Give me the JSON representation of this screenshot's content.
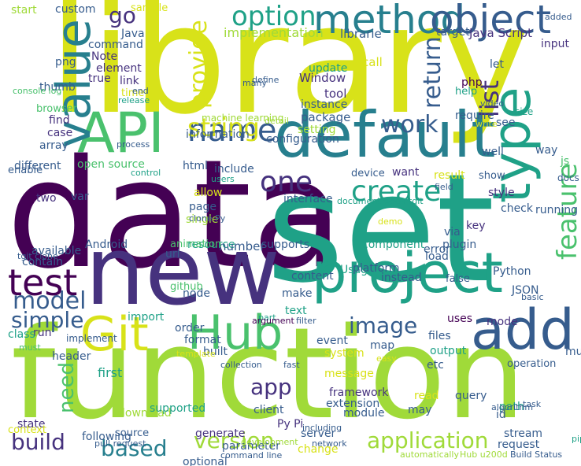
{
  "palette": {
    "yellow": "#d8e219",
    "lime": "#a0da39",
    "green": "#4ac16d",
    "teal": "#1fa187",
    "cyan": "#277f8e",
    "blue": "#365c8d",
    "indigo": "#46327e",
    "purple": "#440154"
  },
  "words": [
    {
      "text": "data",
      "color": "purple",
      "rot": 0
    },
    {
      "text": "library",
      "color": "yellow",
      "rot": 0
    },
    {
      "text": "set",
      "color": "teal",
      "rot": 0
    },
    {
      "text": "function",
      "color": "lime",
      "rot": 0
    },
    {
      "text": "new",
      "color": "indigo",
      "rot": 0
    },
    {
      "text": "default",
      "color": "cyan",
      "rot": 0
    },
    {
      "text": "project",
      "color": "teal",
      "rot": 0
    },
    {
      "text": "API",
      "color": "green",
      "rot": 0
    },
    {
      "text": "Git",
      "color": "yellow",
      "rot": 0
    },
    {
      "text": "Hub",
      "color": "green",
      "rot": 0
    },
    {
      "text": "add",
      "color": "blue",
      "rot": 0
    },
    {
      "text": "type",
      "color": "teal",
      "rot": 90
    },
    {
      "text": "method",
      "color": "cyan",
      "rot": 0
    },
    {
      "text": "object",
      "color": "blue",
      "rot": 0
    },
    {
      "text": "value",
      "color": "cyan",
      "rot": 90
    },
    {
      "text": "test",
      "color": "purple",
      "rot": 0
    },
    {
      "text": "name",
      "color": "blue",
      "rot": 0
    },
    {
      "text": "one",
      "color": "indigo",
      "rot": 0
    },
    {
      "text": "create",
      "color": "teal",
      "rot": 0
    },
    {
      "text": "feature",
      "color": "green",
      "rot": 90
    },
    {
      "text": "option",
      "color": "teal",
      "rot": 0
    },
    {
      "text": "string",
      "color": "yellow",
      "rot": 0
    },
    {
      "text": "provide",
      "color": "yellow",
      "rot": 90
    },
    {
      "text": "go",
      "color": "indigo",
      "rot": 0
    },
    {
      "text": "return",
      "color": "blue",
      "rot": 90
    },
    {
      "text": "list",
      "color": "indigo",
      "rot": 90
    },
    {
      "text": "work",
      "color": "blue",
      "rot": 0
    },
    {
      "text": "model",
      "color": "blue",
      "rot": 0
    },
    {
      "text": "simple",
      "color": "blue",
      "rot": 0
    },
    {
      "text": "image",
      "color": "blue",
      "rot": 0
    },
    {
      "text": "app",
      "color": "indigo",
      "rot": 0
    },
    {
      "text": "need",
      "color": "green",
      "rot": 90
    },
    {
      "text": "build",
      "color": "indigo",
      "rot": 0
    },
    {
      "text": "based",
      "color": "cyan",
      "rot": 0
    },
    {
      "text": "version",
      "color": "lime",
      "rot": 0
    },
    {
      "text": "application",
      "color": "lime",
      "rot": 0
    },
    {
      "text": "implementation",
      "color": "lime",
      "rot": 0
    },
    {
      "text": "librarie",
      "color": "blue",
      "rot": 0
    },
    {
      "text": "Java Script",
      "color": "indigo",
      "rot": 0
    },
    {
      "text": "input",
      "color": "indigo",
      "rot": 0
    },
    {
      "text": "target",
      "color": "blue",
      "rot": 0
    },
    {
      "text": "Note",
      "color": "indigo",
      "rot": 0
    },
    {
      "text": "element",
      "color": "indigo",
      "rot": 0
    },
    {
      "text": "true",
      "color": "indigo",
      "rot": 0
    },
    {
      "text": "link",
      "color": "indigo",
      "rot": 0
    },
    {
      "text": "Java",
      "color": "blue",
      "rot": 0
    },
    {
      "text": "command",
      "color": "blue",
      "rot": 0
    },
    {
      "text": "custom",
      "color": "blue",
      "rot": 0
    },
    {
      "text": "sample",
      "color": "yellow",
      "rot": 0
    },
    {
      "text": "start",
      "color": "lime",
      "rot": 0
    },
    {
      "text": "update",
      "color": "teal",
      "rot": 0
    },
    {
      "text": "call",
      "color": "yellow",
      "rot": 0
    },
    {
      "text": "let",
      "color": "blue",
      "rot": 0
    },
    {
      "text": "Window",
      "color": "indigo",
      "rot": 0
    },
    {
      "text": "php",
      "color": "purple",
      "rot": 0
    },
    {
      "text": "tool",
      "color": "indigo",
      "rot": 0
    },
    {
      "text": "instance",
      "color": "blue",
      "rot": 0
    },
    {
      "text": "help",
      "color": "teal",
      "rot": 0
    },
    {
      "text": "package",
      "color": "blue",
      "rot": 0
    },
    {
      "text": "require",
      "color": "blue",
      "rot": 0
    },
    {
      "text": "see",
      "color": "blue",
      "rot": 0
    },
    {
      "text": "setting",
      "color": "lime",
      "rot": 0
    },
    {
      "text": "information",
      "color": "blue",
      "rot": 0
    },
    {
      "text": "open source",
      "color": "green",
      "rot": 0
    },
    {
      "text": "html",
      "color": "blue",
      "rot": 0
    },
    {
      "text": "include",
      "color": "blue",
      "rot": 0
    },
    {
      "text": "want",
      "color": "indigo",
      "rot": 0
    },
    {
      "text": "result",
      "color": "yellow",
      "rot": 0
    },
    {
      "text": "show",
      "color": "blue",
      "rot": 0
    },
    {
      "text": "device",
      "color": "blue",
      "rot": 0
    },
    {
      "text": "interface",
      "color": "blue",
      "rot": 0
    },
    {
      "text": "style",
      "color": "indigo",
      "rot": 0
    },
    {
      "text": "allow",
      "color": "yellow",
      "rot": 0
    },
    {
      "text": "page",
      "color": "blue",
      "rot": 0
    },
    {
      "text": "single",
      "color": "lime",
      "rot": 0
    },
    {
      "text": "var",
      "color": "blue",
      "rot": 0
    },
    {
      "text": "two",
      "color": "indigo",
      "rot": 0
    },
    {
      "text": "check",
      "color": "blue",
      "rot": 0
    },
    {
      "text": "key",
      "color": "indigo",
      "rot": 0
    },
    {
      "text": "via",
      "color": "blue",
      "rot": 0
    },
    {
      "text": "component",
      "color": "teal",
      "rot": 0
    },
    {
      "text": "plugin",
      "color": "blue",
      "rot": 0
    },
    {
      "text": "load",
      "color": "blue",
      "rot": 0
    },
    {
      "text": "resource",
      "color": "teal",
      "rot": 0
    },
    {
      "text": "number",
      "color": "blue",
      "rot": 0
    },
    {
      "text": "supports",
      "color": "blue",
      "rot": 0
    },
    {
      "text": "available",
      "color": "blue",
      "rot": 0
    },
    {
      "text": "Android",
      "color": "blue",
      "rot": 0
    },
    {
      "text": "contain",
      "color": "blue",
      "rot": 0
    },
    {
      "text": "enable",
      "color": "blue",
      "rot": 0
    },
    {
      "text": "content",
      "color": "blue",
      "rot": 0
    },
    {
      "text": "Usage",
      "color": "teal",
      "rot": 0
    },
    {
      "text": "instead",
      "color": "blue",
      "rot": 0
    },
    {
      "text": "false",
      "color": "blue",
      "rot": 0
    },
    {
      "text": "Python",
      "color": "blue",
      "rot": 0
    },
    {
      "text": "node",
      "color": "blue",
      "rot": 0
    },
    {
      "text": "make",
      "color": "blue",
      "rot": 0
    },
    {
      "text": "JSON",
      "color": "blue",
      "rot": 0
    },
    {
      "text": "text",
      "color": "teal",
      "rot": 0
    },
    {
      "text": "uses",
      "color": "purple",
      "rot": 0
    },
    {
      "text": "mode",
      "color": "indigo",
      "rot": 0
    },
    {
      "text": "order",
      "color": "blue",
      "rot": 0
    },
    {
      "text": "format",
      "color": "blue",
      "rot": 0
    },
    {
      "text": "event",
      "color": "blue",
      "rot": 0
    },
    {
      "text": "map",
      "color": "blue",
      "rot": 0
    },
    {
      "text": "files",
      "color": "blue",
      "rot": 0
    },
    {
      "text": "built",
      "color": "blue",
      "rot": 0
    },
    {
      "text": "system",
      "color": "yellow",
      "rot": 0
    },
    {
      "text": "output",
      "color": "teal",
      "rot": 0
    },
    {
      "text": "etc",
      "color": "blue",
      "rot": 0
    },
    {
      "text": "header",
      "color": "blue",
      "rot": 0
    },
    {
      "text": "first",
      "color": "teal",
      "rot": 0
    },
    {
      "text": "message",
      "color": "yellow",
      "rot": 0
    },
    {
      "text": "run",
      "color": "indigo",
      "rot": 0
    },
    {
      "text": "class",
      "color": "teal",
      "rot": 0
    },
    {
      "text": "framework",
      "color": "indigo",
      "rot": 0
    },
    {
      "text": "extension",
      "color": "blue",
      "rot": 0
    },
    {
      "text": "read",
      "color": "yellow",
      "rot": 0
    },
    {
      "text": "query",
      "color": "blue",
      "rot": 0
    },
    {
      "text": "path",
      "color": "teal",
      "rot": 0
    },
    {
      "text": "module",
      "color": "blue",
      "rot": 0
    },
    {
      "text": "client",
      "color": "blue",
      "rot": 0
    },
    {
      "text": "may",
      "color": "blue",
      "rot": 0
    },
    {
      "text": "id",
      "color": "blue",
      "rot": 0
    },
    {
      "text": "Py Pi",
      "color": "indigo",
      "rot": 0
    },
    {
      "text": "server",
      "color": "blue",
      "rot": 0
    },
    {
      "text": "stream",
      "color": "blue",
      "rot": 0
    },
    {
      "text": "request",
      "color": "blue",
      "rot": 0
    },
    {
      "text": "source",
      "color": "blue",
      "rot": 0
    },
    {
      "text": "change",
      "color": "yellow",
      "rot": 0
    },
    {
      "text": "network",
      "color": "blue",
      "rot": 0
    },
    {
      "text": "command line",
      "color": "blue",
      "rot": 0
    },
    {
      "text": "automatically",
      "color": "lime",
      "rot": 0
    },
    {
      "text": "Hub u200d",
      "color": "lime",
      "rot": 0
    },
    {
      "text": "Build Status",
      "color": "blue",
      "rot": 0
    },
    {
      "text": "state",
      "color": "indigo",
      "rot": 0
    },
    {
      "text": "context",
      "color": "yellow",
      "rot": 0
    },
    {
      "text": "optional",
      "color": "blue",
      "rot": 0
    },
    {
      "text": "generate",
      "color": "indigo",
      "rot": 0
    },
    {
      "text": "download",
      "color": "lime",
      "rot": 0
    },
    {
      "text": "parameter",
      "color": "blue",
      "rot": 0
    },
    {
      "text": "development",
      "color": "lime",
      "rot": 0
    },
    {
      "text": "supported",
      "color": "teal",
      "rot": 0
    },
    {
      "text": "following",
      "color": "blue",
      "rot": 0
    },
    {
      "text": "different",
      "color": "blue",
      "rot": 0
    },
    {
      "text": "case",
      "color": "indigo",
      "rot": 0
    },
    {
      "text": "find",
      "color": "indigo",
      "rot": 0
    },
    {
      "text": "array",
      "color": "blue",
      "rot": 0
    },
    {
      "text": "time",
      "color": "yellow",
      "rot": 0
    },
    {
      "text": "browser",
      "color": "green",
      "rot": 0
    },
    {
      "text": "thumb",
      "color": "blue",
      "rot": 0
    },
    {
      "text": "png",
      "color": "blue",
      "rot": 0
    },
    {
      "text": "console log",
      "color": "green",
      "rot": 0
    },
    {
      "text": "machine learning",
      "color": "lime",
      "rot": 0
    },
    {
      "text": "define",
      "color": "blue",
      "rot": 0
    },
    {
      "text": "many",
      "color": "blue",
      "rot": 0
    },
    {
      "text": "release",
      "color": "teal",
      "rot": 0
    },
    {
      "text": "end",
      "color": "blue",
      "rot": 0
    },
    {
      "text": "configuration",
      "color": "blue",
      "rot": 0
    },
    {
      "text": "detail",
      "color": "lime",
      "rot": 0
    },
    {
      "text": "docs examples",
      "color": "blue",
      "rot": 0
    },
    {
      "text": "added",
      "color": "blue",
      "rot": 0
    },
    {
      "text": "video",
      "color": "blue",
      "rot": 0
    },
    {
      "text": "size",
      "color": "teal",
      "rot": 0
    },
    {
      "text": "write",
      "color": "yellow",
      "rot": 0
    },
    {
      "text": "well",
      "color": "blue",
      "rot": 0
    },
    {
      "text": "way",
      "color": "blue",
      "rot": 0
    },
    {
      "text": "js",
      "color": "green",
      "rot": 0
    },
    {
      "text": "running",
      "color": "blue",
      "rot": 0
    },
    {
      "text": "process",
      "color": "blue",
      "rot": 0
    },
    {
      "text": "control",
      "color": "teal",
      "rot": 0
    },
    {
      "text": "users",
      "color": "teal",
      "rot": 0
    },
    {
      "text": "field",
      "color": "blue",
      "rot": 0
    },
    {
      "text": "document",
      "color": "teal",
      "rot": 0
    },
    {
      "text": "open tgit",
      "color": "teal",
      "rot": 0
    },
    {
      "text": "clone Py",
      "color": "blue",
      "rot": 0
    },
    {
      "text": "animation",
      "color": "green",
      "rot": 0
    },
    {
      "text": "url",
      "color": "blue",
      "rot": 0
    },
    {
      "text": "github",
      "color": "green",
      "rot": 0
    },
    {
      "text": "platform",
      "color": "blue",
      "rot": 0
    },
    {
      "text": "error",
      "color": "blue",
      "rot": 0
    },
    {
      "text": "demo",
      "color": "yellow",
      "rot": 0
    },
    {
      "text": "tgit clone",
      "color": "blue",
      "rot": 0
    },
    {
      "text": "import",
      "color": "teal",
      "rot": 0
    },
    {
      "text": "part",
      "color": "teal",
      "rot": 0
    },
    {
      "text": "argument",
      "color": "purple",
      "rot": 0
    },
    {
      "text": "filter",
      "color": "blue",
      "rot": 0
    },
    {
      "text": "basic",
      "color": "blue",
      "rot": 0
    },
    {
      "text": "multiple",
      "color": "blue",
      "rot": 0
    },
    {
      "text": "implement",
      "color": "blue",
      "rot": 0
    },
    {
      "text": "must",
      "color": "green",
      "rot": 0
    },
    {
      "text": "template",
      "color": "yellow",
      "rot": 0
    },
    {
      "text": "easy",
      "color": "yellow",
      "rot": 0
    },
    {
      "text": "collection",
      "color": "blue",
      "rot": 0
    },
    {
      "text": "fast",
      "color": "blue",
      "rot": 0
    },
    {
      "text": "operation",
      "color": "blue",
      "rot": 0
    },
    {
      "text": "pull request",
      "color": "blue",
      "rot": 0
    },
    {
      "text": "including",
      "color": "blue",
      "rot": 0
    },
    {
      "text": "algorithm",
      "color": "blue",
      "rot": 0
    },
    {
      "text": "task",
      "color": "blue",
      "rot": 0
    },
    {
      "text": "pip install",
      "color": "teal",
      "rot": 0
    }
  ]
}
